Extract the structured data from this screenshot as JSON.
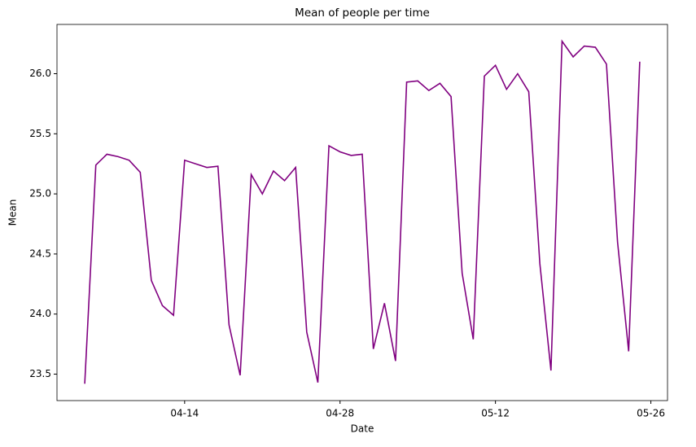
{
  "chart_data": {
    "type": "line",
    "title": "Mean of people per time",
    "x_label": "Date",
    "y_label": "Mean",
    "x": [
      "04-05",
      "04-06",
      "04-07",
      "04-08",
      "04-09",
      "04-10",
      "04-11",
      "04-12",
      "04-13",
      "04-14",
      "04-15",
      "04-16",
      "04-17",
      "04-18",
      "04-19",
      "04-20",
      "04-21",
      "04-22",
      "04-23",
      "04-24",
      "04-25",
      "04-26",
      "04-27",
      "04-28",
      "04-29",
      "04-30",
      "05-01",
      "05-02",
      "05-03",
      "05-04",
      "05-05",
      "05-06",
      "05-07",
      "05-08",
      "05-09",
      "05-10",
      "05-11",
      "05-12",
      "05-13",
      "05-14",
      "05-15",
      "05-16",
      "05-17",
      "05-18",
      "05-19",
      "05-20",
      "05-21",
      "05-22",
      "05-23",
      "05-24",
      "05-25"
    ],
    "series": [
      {
        "name": "Mean",
        "color": "#800080",
        "values": [
          23.42,
          25.24,
          25.33,
          25.31,
          25.28,
          25.18,
          24.28,
          24.07,
          23.99,
          25.28,
          25.25,
          25.22,
          25.23,
          23.91,
          23.49,
          25.16,
          25.0,
          25.19,
          25.11,
          25.22,
          23.85,
          23.43,
          25.4,
          25.35,
          25.32,
          25.33,
          23.71,
          24.09,
          23.61,
          25.93,
          25.94,
          25.86,
          25.92,
          25.81,
          24.34,
          23.79,
          25.98,
          26.07,
          25.87,
          26.0,
          25.85,
          24.42,
          23.53,
          26.27,
          26.14,
          26.23,
          26.22,
          26.08,
          24.6,
          23.69,
          26.1
        ]
      }
    ],
    "xticks": [
      "04-14",
      "04-28",
      "05-12",
      "05-26"
    ],
    "ylim": [
      23.28,
      26.41
    ],
    "yticks": [
      23.5,
      {
        "value": 24,
        "label": "24.0"
      },
      24.5,
      {
        "value": 25,
        "label": "25.0"
      },
      25.5,
      {
        "value": 26,
        "label": "26.0"
      }
    ]
  }
}
